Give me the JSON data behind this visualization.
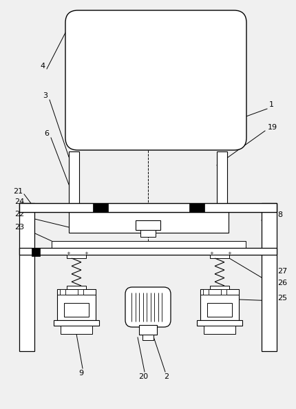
{
  "bg_color": "#f0f0f0",
  "line_color": "#000000",
  "fig_width": 4.3,
  "fig_height": 5.94,
  "dpi": 100
}
